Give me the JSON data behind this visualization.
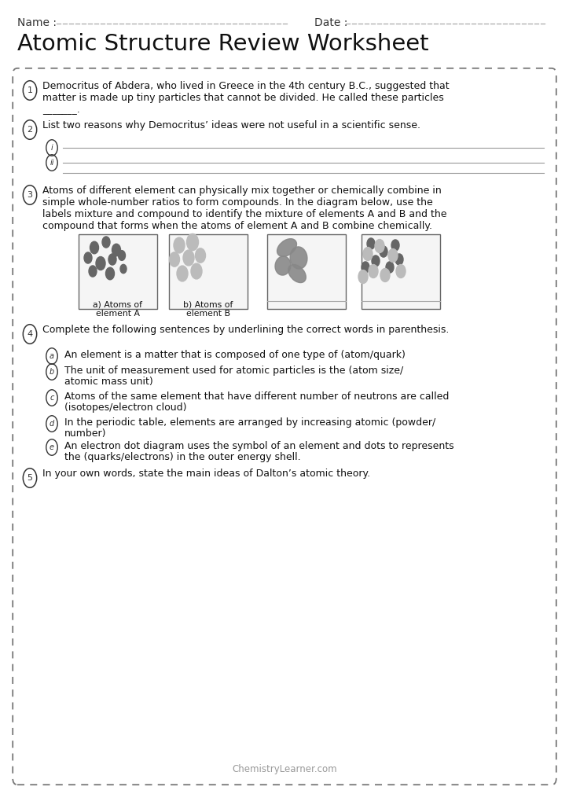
{
  "title": "Atomic Structure Review Worksheet",
  "name_label": "Name :",
  "date_label": "Date :",
  "bg_color": "#ffffff",
  "footer": "ChemistryLearner.com",
  "figsize": [
    7.24,
    10.24
  ],
  "dpi": 100
}
